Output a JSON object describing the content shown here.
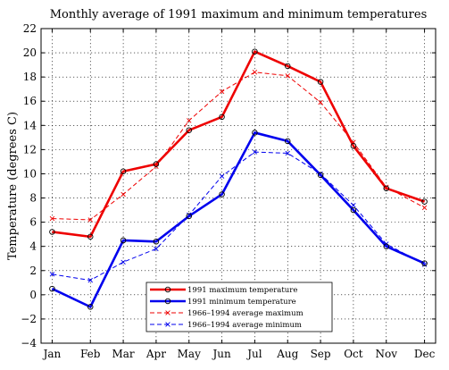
{
  "chart_data": {
    "type": "line",
    "title": "Monthly average of 1991 maximum and minimum temperatures",
    "xlabel": "",
    "ylabel": "Temperature (degrees C)",
    "categories": [
      "Jan",
      "Feb",
      "Mar",
      "Apr",
      "May",
      "Jun",
      "Jul",
      "Aug",
      "Sep",
      "Oct",
      "Nov",
      "Dec"
    ],
    "ylim": [
      -4,
      22
    ],
    "yticks": [
      -4,
      -2,
      0,
      2,
      4,
      6,
      8,
      10,
      12,
      14,
      16,
      18,
      20,
      22
    ],
    "grid": true,
    "legend_position": "bottom-center",
    "series": [
      {
        "name": "1991 maximum temperature",
        "values": [
          5.2,
          4.8,
          10.2,
          10.8,
          13.6,
          14.7,
          20.1,
          18.9,
          17.6,
          12.3,
          8.8,
          7.7
        ],
        "color": "#ee0000",
        "style": "solid",
        "marker": "circle"
      },
      {
        "name": "1991 minimum temperature",
        "values": [
          0.5,
          -1.0,
          4.5,
          4.4,
          6.5,
          8.3,
          13.4,
          12.7,
          9.9,
          7.0,
          4.0,
          2.6
        ],
        "color": "#0000ee",
        "style": "solid",
        "marker": "circle"
      },
      {
        "name": "1966–1994 average maximum",
        "values": [
          6.3,
          6.2,
          8.3,
          10.6,
          14.4,
          16.8,
          18.4,
          18.1,
          15.9,
          12.6,
          8.9,
          7.2
        ],
        "color": "#ee0000",
        "style": "dashed",
        "marker": "x"
      },
      {
        "name": "1966–1994 average minimum",
        "values": [
          1.7,
          1.2,
          2.7,
          3.8,
          6.6,
          9.8,
          11.8,
          11.7,
          10.0,
          7.4,
          4.2,
          2.5
        ],
        "color": "#0000ee",
        "style": "dashed",
        "marker": "x"
      }
    ]
  }
}
